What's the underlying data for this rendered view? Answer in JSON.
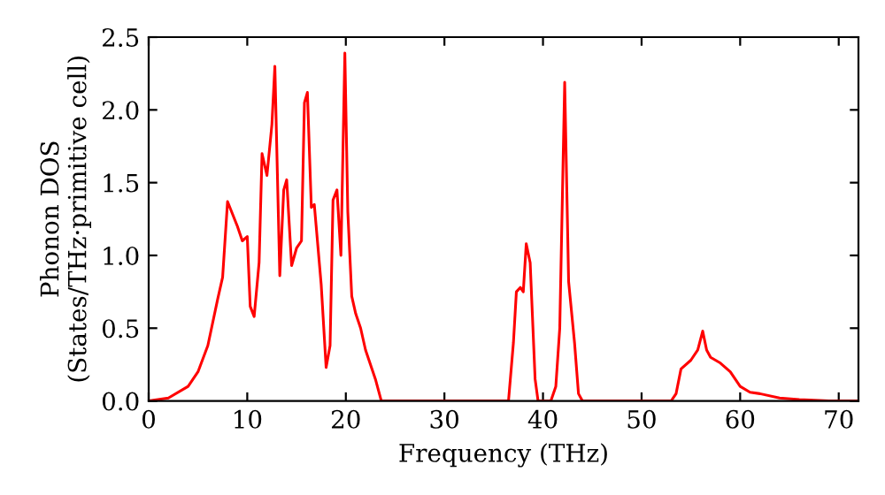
{
  "chart_data": {
    "type": "line",
    "xlabel": "Frequency (THz)",
    "ylabel": "Phonon DOS\n(States/THz·primitive cell)",
    "xlim": [
      0,
      72
    ],
    "ylim": [
      0,
      2.5
    ],
    "xticks": [
      0,
      10,
      20,
      30,
      40,
      50,
      60,
      70
    ],
    "yticks": [
      {
        "value": 0,
        "label": "0.0"
      },
      {
        "value": 0.5,
        "label": "0.5"
      },
      {
        "value": 1,
        "label": "1.0"
      },
      {
        "value": 1.5,
        "label": "1.5"
      },
      {
        "value": 2,
        "label": "2.0"
      },
      {
        "value": 2.5,
        "label": "2.5"
      }
    ],
    "grid": false,
    "legend": false,
    "series": [
      {
        "color": "#ff0000",
        "x": [
          0,
          2,
          4,
          5,
          6,
          7,
          7.5,
          8,
          9,
          9.5,
          10,
          10.3,
          10.7,
          11.2,
          11.5,
          12,
          12.5,
          12.8,
          13.3,
          13.7,
          14,
          14.5,
          15,
          15.5,
          15.8,
          16.1,
          16.5,
          16.8,
          17.5,
          18,
          18.4,
          18.7,
          19.1,
          19.5,
          19.9,
          20.2,
          20.6,
          21,
          21.5,
          22,
          23,
          23.6,
          36.5,
          37,
          37.3,
          37.7,
          38,
          38.3,
          38.7,
          39.2,
          39.5,
          40.8,
          41.3,
          41.7,
          42.2,
          42.6,
          43.2,
          43.6,
          44,
          53,
          53.5,
          54,
          55,
          55.7,
          56.2,
          56.6,
          57,
          58,
          59,
          60,
          61,
          62,
          64,
          66,
          69,
          72
        ],
        "values": [
          0,
          0.02,
          0.1,
          0.2,
          0.38,
          0.7,
          0.85,
          1.37,
          1.2,
          1.1,
          1.13,
          0.65,
          0.58,
          0.95,
          1.7,
          1.55,
          1.9,
          2.3,
          0.86,
          1.45,
          1.52,
          0.93,
          1.05,
          1.1,
          2.05,
          2.12,
          1.33,
          1.35,
          0.8,
          0.23,
          0.38,
          1.38,
          1.45,
          1.0,
          2.39,
          1.3,
          0.72,
          0.6,
          0.5,
          0.35,
          0.15,
          0,
          0,
          0.4,
          0.75,
          0.78,
          0.75,
          1.08,
          0.95,
          0.15,
          0,
          0,
          0.1,
          0.5,
          2.19,
          0.82,
          0.4,
          0.05,
          0,
          0,
          0.05,
          0.22,
          0.28,
          0.35,
          0.48,
          0.35,
          0.3,
          0.26,
          0.2,
          0.1,
          0.06,
          0.05,
          0.02,
          0.01,
          0,
          0
        ]
      }
    ]
  }
}
